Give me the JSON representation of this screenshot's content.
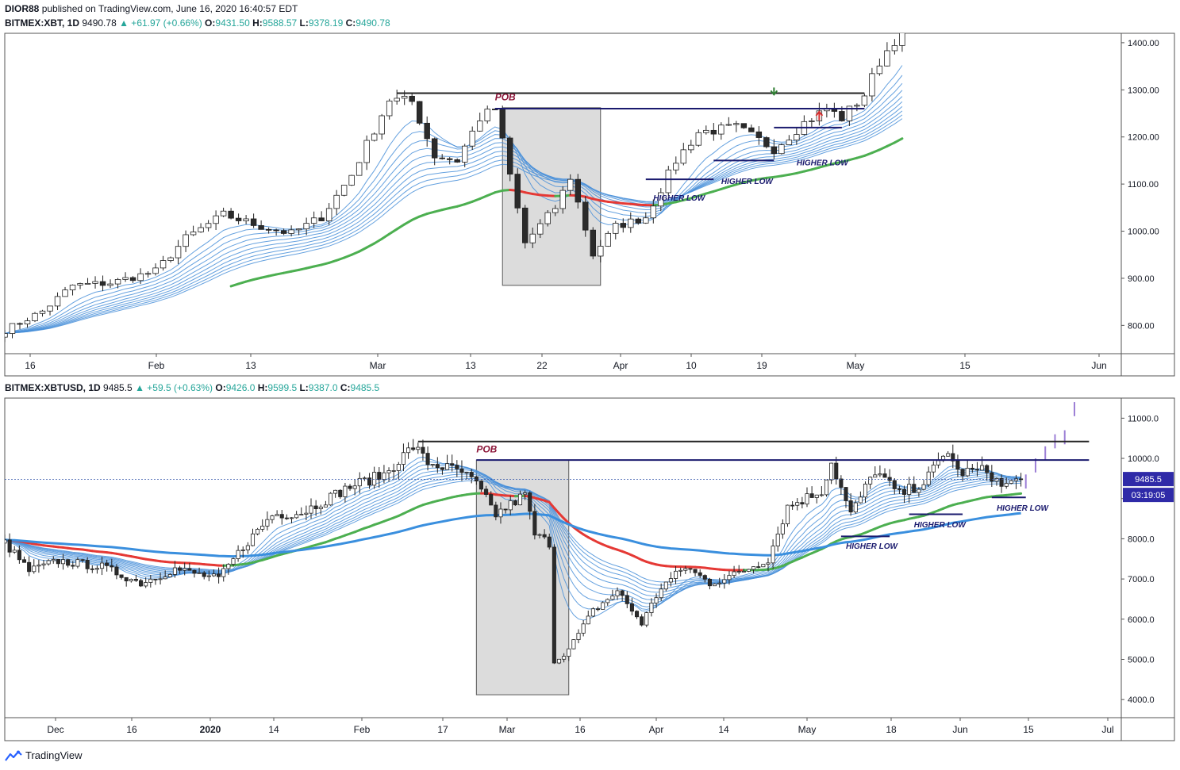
{
  "header": {
    "publisher": "DIOR88",
    "published_text": "published on TradingView.com, June 16, 2020 16:40:57 EDT"
  },
  "chart1_header": {
    "symbol": "BITMEX:XBT, 1D",
    "last": "9490.78",
    "change": "▲ +61.97 (+0.66%)",
    "o_label": "O:",
    "o": "9431.50",
    "h_label": "H:",
    "h": "9588.57",
    "l_label": "L:",
    "l": "9378.19",
    "c_label": "C:",
    "c": "9490.78"
  },
  "chart2_header": {
    "symbol": "BITMEX:XBTUSD, 1D",
    "last": "9485.5",
    "change": "▲ +59.5 (+0.63%)",
    "o_label": "O:",
    "o": "9426.0",
    "h_label": "H:",
    "h": "9599.5",
    "l_label": "L:",
    "l": "9387.0",
    "c_label": "C:",
    "c": "9485.5"
  },
  "footer": {
    "brand": "TradingView"
  },
  "colors": {
    "up": "#26a69a",
    "ribbon": "#4a90d9",
    "ema_red": "#e53935",
    "ema_green": "#4caf50",
    "ema_blue": "#3a8fde",
    "level": "#1a1a6e",
    "box": "#d9d9d9",
    "price_tag": "#2f2aa8"
  },
  "chart_data": [
    {
      "type": "candlestick",
      "title": "BITMEX:XBT, 1D",
      "x_range": [
        "2020-01-11",
        "2020-06-06"
      ],
      "ylim": [
        740,
        1420
      ],
      "y_ticks": [
        "1400.00",
        "1300.00",
        "1200.00",
        "1100.00",
        "1000.00",
        "900.00",
        "800.00"
      ],
      "x_ticks": [
        "16",
        "Feb",
        "13",
        "Mar",
        "13",
        "22",
        "Apr",
        "10",
        "19",
        "May",
        "15",
        "Jun"
      ],
      "close_path": [
        [
          "2020-01-11",
          790
        ],
        [
          "2020-01-16",
          830
        ],
        [
          "2020-01-20",
          885
        ],
        [
          "2020-01-25",
          890
        ],
        [
          "2020-01-31",
          915
        ],
        [
          "2020-02-04",
          985
        ],
        [
          "2020-02-09",
          1035
        ],
        [
          "2020-02-14",
          1010
        ],
        [
          "2020-02-18",
          995
        ],
        [
          "2020-02-22",
          1030
        ],
        [
          "2020-02-26",
          1120
        ],
        [
          "2020-03-02",
          1280
        ],
        [
          "2020-03-05",
          1275
        ],
        [
          "2020-03-08",
          1160
        ],
        [
          "2020-03-11",
          1150
        ],
        [
          "2020-03-14",
          1240
        ],
        [
          "2020-03-16",
          1260
        ],
        [
          "2020-03-17",
          1190
        ],
        [
          "2020-03-20",
          975
        ],
        [
          "2020-03-24",
          1050
        ],
        [
          "2020-03-26",
          1115
        ],
        [
          "2020-03-29",
          950
        ],
        [
          "2020-04-01",
          1010
        ],
        [
          "2020-04-05",
          1030
        ],
        [
          "2020-04-09",
          1150
        ],
        [
          "2020-04-12",
          1210
        ],
        [
          "2020-04-17",
          1220
        ],
        [
          "2020-04-22",
          1175
        ],
        [
          "2020-04-26",
          1230
        ],
        [
          "2020-04-29",
          1260
        ],
        [
          "2020-05-01",
          1240
        ],
        [
          "2020-05-04",
          1290
        ],
        [
          "2020-05-06",
          1360
        ],
        [
          "2020-05-09",
          1430
        ]
      ],
      "annotations": [
        "POB",
        "HIGHER LOW",
        "HIGHER LOW",
        "HIGHER LOW"
      ],
      "levels": [
        1293,
        1260,
        1220,
        1150,
        1110
      ],
      "pob_box": {
        "x0": "2020-03-17",
        "x1": "2020-03-30",
        "y0": 885,
        "y1": 1262
      }
    },
    {
      "type": "candlestick",
      "title": "BITMEX:XBTUSD, 1D",
      "x_range": [
        "2019-11-20",
        "2020-07-05"
      ],
      "ylim": [
        3550,
        11500
      ],
      "y_ticks": [
        "11000.0",
        "10000.0",
        "9000.0",
        "8000.0",
        "7000.0",
        "6000.0",
        "5000.0",
        "4000.0"
      ],
      "x_ticks": [
        "Dec",
        "16",
        "2020",
        "14",
        "Feb",
        "17",
        "Mar",
        "16",
        "Apr",
        "14",
        "May",
        "18",
        "Jun",
        "15",
        "Jul"
      ],
      "close_path": [
        [
          "2019-11-20",
          7900
        ],
        [
          "2019-11-25",
          7200
        ],
        [
          "2019-12-01",
          7450
        ],
        [
          "2019-12-10",
          7300
        ],
        [
          "2019-12-18",
          6900
        ],
        [
          "2019-12-25",
          7250
        ],
        [
          "2020-01-03",
          7000
        ],
        [
          "2020-01-08",
          7800
        ],
        [
          "2020-01-14",
          8600
        ],
        [
          "2020-01-20",
          8650
        ],
        [
          "2020-01-30",
          9300
        ],
        [
          "2020-02-06",
          9600
        ],
        [
          "2020-02-12",
          10300
        ],
        [
          "2020-02-15",
          9900
        ],
        [
          "2020-02-22",
          9650
        ],
        [
          "2020-02-25",
          9350
        ],
        [
          "2020-02-29",
          8600
        ],
        [
          "2020-03-06",
          9100
        ],
        [
          "2020-03-08",
          8100
        ],
        [
          "2020-03-11",
          7900
        ],
        [
          "2020-03-12",
          4950
        ],
        [
          "2020-03-15",
          5250
        ],
        [
          "2020-03-20",
          6200
        ],
        [
          "2020-03-25",
          6700
        ],
        [
          "2020-03-30",
          5900
        ],
        [
          "2020-04-03",
          6800
        ],
        [
          "2020-04-08",
          7300
        ],
        [
          "2020-04-13",
          6900
        ],
        [
          "2020-04-18",
          7100
        ],
        [
          "2020-04-25",
          7500
        ],
        [
          "2020-04-29",
          8800
        ],
        [
          "2020-05-06",
          9200
        ],
        [
          "2020-05-08",
          9900
        ],
        [
          "2020-05-12",
          8600
        ],
        [
          "2020-05-17",
          9700
        ],
        [
          "2020-05-22",
          9100
        ],
        [
          "2020-05-27",
          9400
        ],
        [
          "2020-06-01",
          10200
        ],
        [
          "2020-06-03",
          9650
        ],
        [
          "2020-06-09",
          9700
        ],
        [
          "2020-06-12",
          9300
        ],
        [
          "2020-06-16",
          9485.5
        ]
      ],
      "forecast": [
        [
          "2020-06-17",
          9600
        ],
        [
          "2020-06-19",
          10000
        ],
        [
          "2020-06-21",
          10300
        ],
        [
          "2020-06-23",
          10600
        ],
        [
          "2020-06-25",
          10700
        ],
        [
          "2020-06-27",
          11400
        ]
      ],
      "last_price": "9485.5",
      "countdown": "03:19:05",
      "annotations": [
        "POB",
        "HIGHER LOW",
        "HIGHER LOW",
        "HIGHER LOW"
      ],
      "levels": [
        10420,
        9960,
        9480,
        8610,
        8060,
        9030
      ],
      "pob_box": {
        "x0": "2020-02-25",
        "x1": "2020-03-15",
        "y0": 4120,
        "y1": 9960
      }
    }
  ]
}
